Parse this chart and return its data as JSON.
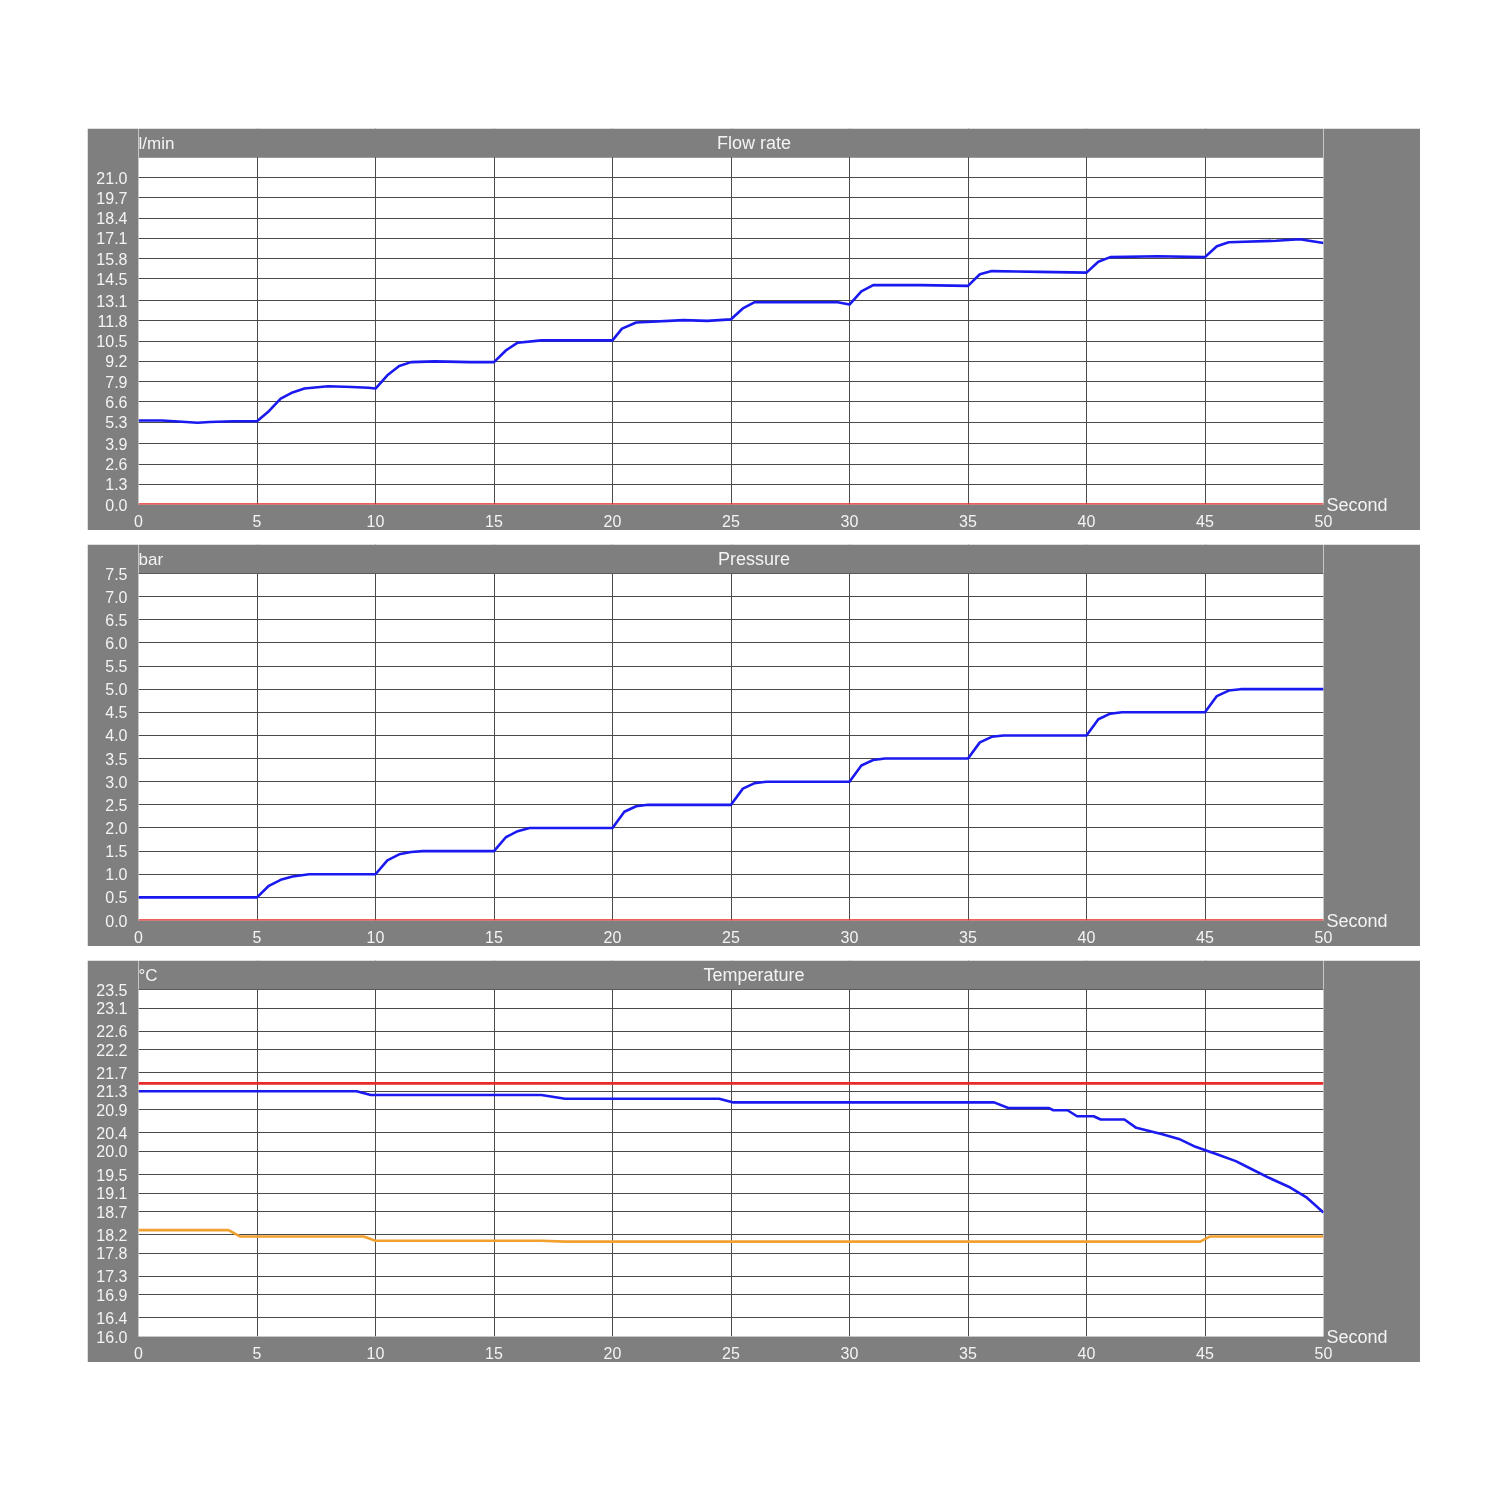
{
  "chart_data": [
    {
      "type": "line",
      "title": "Flow rate",
      "ylabel": "l/min",
      "xlabel": "Second",
      "xlim": [
        0,
        50
      ],
      "xticks": [
        0,
        5,
        10,
        15,
        20,
        25,
        30,
        35,
        40,
        45,
        50
      ],
      "ylim": [
        0,
        22.3
      ],
      "yticks": [
        {
          "value": 0,
          "label": "0.0"
        },
        1.3,
        2.6,
        3.9,
        5.3,
        6.6,
        7.9,
        9.2,
        10.5,
        11.8,
        13.1,
        14.5,
        15.8,
        17.1,
        18.4,
        19.7,
        {
          "value": 21,
          "label": "21.0"
        }
      ],
      "grid": true,
      "series": [
        {
          "color": "#1a1af0",
          "x": [
            0,
            1,
            2,
            2.5,
            3,
            4,
            5,
            5.5,
            6,
            6.5,
            7,
            8,
            9,
            9.7,
            10,
            10.5,
            11,
            11.5,
            12.5,
            14,
            15,
            15.5,
            16,
            17,
            20,
            20.4,
            21,
            23,
            24,
            25,
            25.5,
            26,
            29.5,
            30,
            30.5,
            31,
            33,
            35,
            35.5,
            36,
            38,
            40,
            40.5,
            41,
            43,
            45,
            45.5,
            46,
            48,
            49,
            50
          ],
          "values": [
            5.4,
            5.4,
            5.3,
            5.25,
            5.3,
            5.35,
            5.35,
            6.0,
            6.8,
            7.2,
            7.45,
            7.6,
            7.55,
            7.5,
            7.45,
            8.3,
            8.9,
            9.15,
            9.2,
            9.15,
            9.15,
            9.9,
            10.4,
            10.55,
            10.55,
            11.3,
            11.7,
            11.85,
            11.8,
            11.9,
            12.6,
            13.0,
            13.0,
            12.85,
            13.7,
            14.1,
            14.1,
            14.05,
            14.8,
            15.0,
            14.95,
            14.9,
            15.6,
            15.9,
            15.95,
            15.9,
            16.6,
            16.85,
            16.95,
            17.05,
            16.8
          ]
        },
        {
          "color": "#e8292a",
          "x": [
            0,
            50
          ],
          "values": [
            0,
            0
          ]
        }
      ]
    },
    {
      "type": "line",
      "title": "Pressure",
      "ylabel": "bar",
      "xlabel": "Second",
      "xlim": [
        0,
        50
      ],
      "xticks": [
        0,
        5,
        10,
        15,
        20,
        25,
        30,
        35,
        40,
        45,
        50
      ],
      "ylim": [
        0,
        7.5
      ],
      "yticks": [
        {
          "value": 0,
          "label": "0.0"
        },
        0.5,
        {
          "value": 1,
          "label": "1.0"
        },
        1.5,
        {
          "value": 2,
          "label": "2.0"
        },
        2.5,
        {
          "value": 3,
          "label": "3.0"
        },
        3.5,
        {
          "value": 4,
          "label": "4.0"
        },
        4.5,
        {
          "value": 5,
          "label": "5.0"
        },
        5.5,
        {
          "value": 6,
          "label": "6.0"
        },
        6.5,
        {
          "value": 7,
          "label": "7.0"
        },
        7.5
      ],
      "grid": true,
      "series": [
        {
          "color": "#1a1af0",
          "x": [
            0,
            5,
            5.5,
            6,
            6.5,
            7.2,
            10,
            10.5,
            11,
            11.5,
            12,
            15,
            15.5,
            16,
            16.5,
            20,
            20.5,
            21,
            21.5,
            25,
            25.5,
            26,
            26.5,
            30,
            30.5,
            31,
            31.5,
            35,
            35.5,
            36,
            36.5,
            40,
            40.5,
            41,
            41.5,
            45,
            45.5,
            46,
            46.5,
            50
          ],
          "values": [
            0.5,
            0.5,
            0.75,
            0.88,
            0.95,
            1.0,
            1.0,
            1.3,
            1.43,
            1.48,
            1.5,
            1.5,
            1.8,
            1.93,
            2.0,
            2.0,
            2.35,
            2.47,
            2.5,
            2.5,
            2.85,
            2.97,
            3.0,
            3.0,
            3.35,
            3.47,
            3.5,
            3.5,
            3.85,
            3.97,
            4.0,
            4.0,
            4.35,
            4.47,
            4.5,
            4.5,
            4.85,
            4.97,
            5.0,
            5.0
          ]
        },
        {
          "color": "#e8292a",
          "x": [
            0,
            50
          ],
          "values": [
            0,
            0
          ]
        }
      ]
    },
    {
      "type": "line",
      "title": "Temperature",
      "ylabel": "°C",
      "xlabel": "Second",
      "xlim": [
        0,
        50
      ],
      "xticks": [
        0,
        5,
        10,
        15,
        20,
        25,
        30,
        35,
        40,
        45,
        50
      ],
      "ylim": [
        16,
        23.5
      ],
      "yticks": [
        {
          "value": 16,
          "label": "16.0"
        },
        16.4,
        16.9,
        17.3,
        17.8,
        18.2,
        18.7,
        19.1,
        19.5,
        {
          "value": 20,
          "label": "20.0"
        },
        20.4,
        20.9,
        21.3,
        21.7,
        22.2,
        22.6,
        23.1,
        23.5
      ],
      "grid": true,
      "series": [
        {
          "color": "#e8292a",
          "x": [
            0,
            50
          ],
          "values": [
            21.47,
            21.47
          ]
        },
        {
          "color": "#1a1af0",
          "x": [
            0,
            9.2,
            9.8,
            17.0,
            18.0,
            24.5,
            25.1,
            36.1,
            36.7,
            38.4,
            38.6,
            39.2,
            39.6,
            40.3,
            40.6,
            41.6,
            42.1,
            43.2,
            43.9,
            44.6,
            45.5,
            46.3,
            47.0,
            47.7,
            48.6,
            49.3,
            50
          ],
          "values": [
            21.3,
            21.3,
            21.22,
            21.22,
            21.14,
            21.14,
            21.06,
            21.06,
            20.94,
            20.94,
            20.89,
            20.89,
            20.76,
            20.76,
            20.69,
            20.69,
            20.51,
            20.37,
            20.27,
            20.1,
            19.94,
            19.79,
            19.61,
            19.43,
            19.22,
            19.0,
            18.68
          ]
        },
        {
          "color": "#f2a030",
          "x": [
            0,
            3.8,
            4.3,
            9.5,
            10,
            17,
            18,
            44.8,
            45.2,
            50
          ],
          "values": [
            18.3,
            18.3,
            18.16,
            18.16,
            18.07,
            18.07,
            18.05,
            18.05,
            18.16,
            18.16
          ]
        }
      ]
    }
  ]
}
